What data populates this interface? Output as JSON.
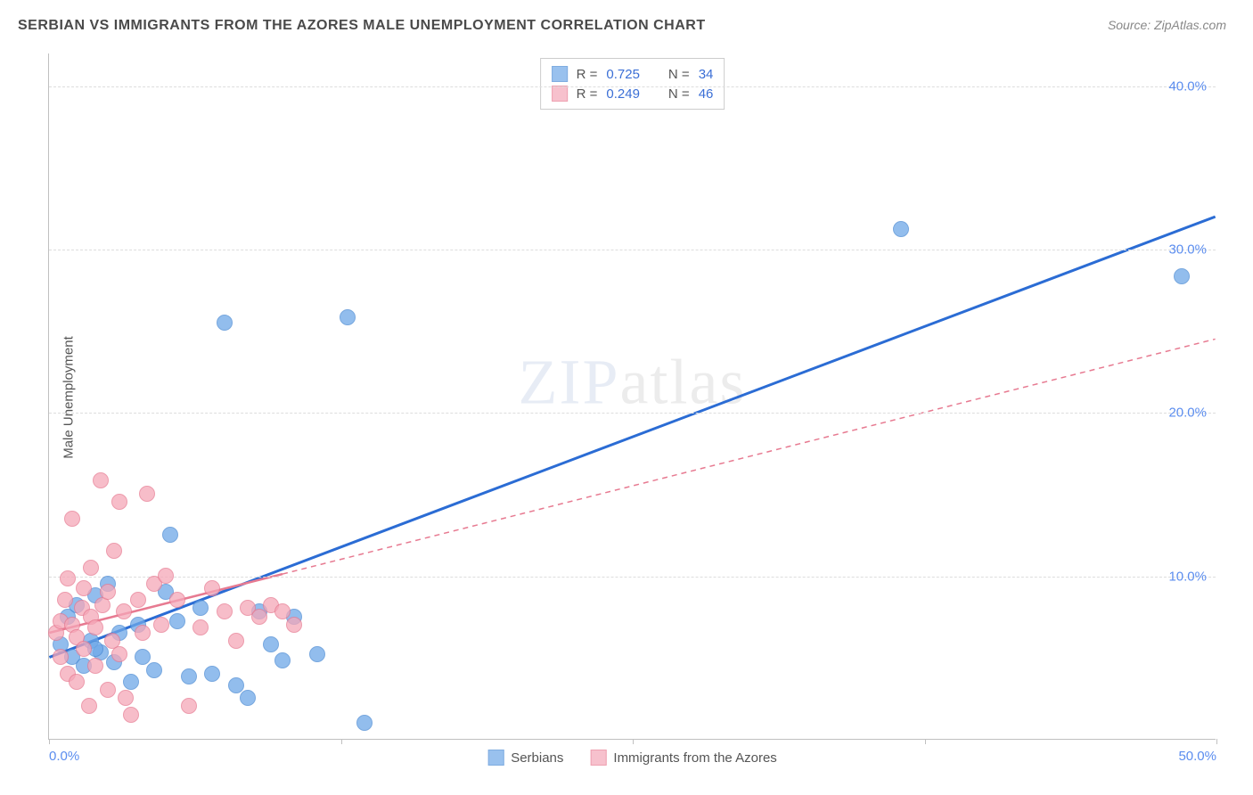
{
  "title": "SERBIAN VS IMMIGRANTS FROM THE AZORES MALE UNEMPLOYMENT CORRELATION CHART",
  "source": "Source: ZipAtlas.com",
  "y_axis_label": "Male Unemployment",
  "watermark": {
    "bold": "ZIP",
    "thin": "atlas"
  },
  "chart": {
    "type": "scatter",
    "xlim": [
      0,
      50
    ],
    "ylim": [
      0,
      42
    ],
    "x_ticks": [
      0,
      12.5,
      25,
      37.5,
      50
    ],
    "x_tick_labels": [
      "0.0%",
      "",
      "",
      "",
      "50.0%"
    ],
    "y_gridlines": [
      10,
      20,
      30,
      40
    ],
    "y_tick_labels": [
      "10.0%",
      "20.0%",
      "30.0%",
      "40.0%"
    ],
    "background_color": "#ffffff",
    "grid_color": "#dddddd",
    "axis_color": "#c0c0c0",
    "tick_label_color": "#5b8def",
    "point_radius": 9,
    "point_border_width": 1.5,
    "point_fill_opacity": 0.35
  },
  "series": [
    {
      "name": "Serbians",
      "color": "#6ea8e8",
      "border_color": "#4a8ad4",
      "R": "0.725",
      "N": "34",
      "trendline": {
        "x1": 0,
        "y1": 5.0,
        "x2": 50,
        "y2": 32.0,
        "stroke": "#2b6cd4",
        "width": 3,
        "dash": "none"
      },
      "points": [
        [
          0.5,
          5.8
        ],
        [
          0.8,
          7.5
        ],
        [
          1.0,
          5.0
        ],
        [
          1.2,
          8.2
        ],
        [
          1.5,
          4.5
        ],
        [
          1.8,
          6.0
        ],
        [
          2.0,
          8.8
        ],
        [
          2.2,
          5.3
        ],
        [
          2.5,
          9.5
        ],
        [
          2.8,
          4.7
        ],
        [
          3.0,
          6.5
        ],
        [
          3.5,
          3.5
        ],
        [
          3.8,
          7.0
        ],
        [
          4.0,
          5.0
        ],
        [
          4.5,
          4.2
        ],
        [
          5.0,
          9.0
        ],
        [
          5.2,
          12.5
        ],
        [
          5.5,
          7.2
        ],
        [
          6.0,
          3.8
        ],
        [
          6.5,
          8.0
        ],
        [
          7.0,
          4.0
        ],
        [
          7.5,
          25.5
        ],
        [
          8.0,
          3.3
        ],
        [
          8.5,
          2.5
        ],
        [
          9.0,
          7.8
        ],
        [
          9.5,
          5.8
        ],
        [
          10.0,
          4.8
        ],
        [
          10.5,
          7.5
        ],
        [
          11.5,
          5.2
        ],
        [
          12.8,
          25.8
        ],
        [
          13.5,
          1.0
        ],
        [
          36.5,
          31.2
        ],
        [
          48.5,
          28.3
        ],
        [
          2.0,
          5.5
        ]
      ]
    },
    {
      "name": "Immigrants from the Azores",
      "color": "#f5a7b8",
      "border_color": "#e77a91",
      "R": "0.249",
      "N": "46",
      "trendline": {
        "x1": 0,
        "y1": 6.5,
        "x2": 50,
        "y2": 24.5,
        "stroke": "#e77a91",
        "width": 1.5,
        "dash": "6 5",
        "solid_until_x": 10
      },
      "points": [
        [
          0.3,
          6.5
        ],
        [
          0.5,
          7.2
        ],
        [
          0.5,
          5.0
        ],
        [
          0.7,
          8.5
        ],
        [
          0.8,
          9.8
        ],
        [
          0.8,
          4.0
        ],
        [
          1.0,
          7.0
        ],
        [
          1.0,
          13.5
        ],
        [
          1.2,
          6.2
        ],
        [
          1.2,
          3.5
        ],
        [
          1.4,
          8.0
        ],
        [
          1.5,
          9.2
        ],
        [
          1.5,
          5.5
        ],
        [
          1.7,
          2.0
        ],
        [
          1.8,
          7.5
        ],
        [
          1.8,
          10.5
        ],
        [
          2.0,
          6.8
        ],
        [
          2.0,
          4.5
        ],
        [
          2.2,
          15.8
        ],
        [
          2.3,
          8.2
        ],
        [
          2.5,
          3.0
        ],
        [
          2.5,
          9.0
        ],
        [
          2.7,
          6.0
        ],
        [
          2.8,
          11.5
        ],
        [
          3.0,
          14.5
        ],
        [
          3.0,
          5.2
        ],
        [
          3.2,
          7.8
        ],
        [
          3.3,
          2.5
        ],
        [
          3.5,
          1.5
        ],
        [
          3.8,
          8.5
        ],
        [
          4.0,
          6.5
        ],
        [
          4.2,
          15.0
        ],
        [
          4.5,
          9.5
        ],
        [
          4.8,
          7.0
        ],
        [
          5.0,
          10.0
        ],
        [
          5.5,
          8.5
        ],
        [
          6.0,
          2.0
        ],
        [
          6.5,
          6.8
        ],
        [
          7.0,
          9.2
        ],
        [
          7.5,
          7.8
        ],
        [
          8.0,
          6.0
        ],
        [
          8.5,
          8.0
        ],
        [
          9.0,
          7.5
        ],
        [
          9.5,
          8.2
        ],
        [
          10.0,
          7.8
        ],
        [
          10.5,
          7.0
        ]
      ]
    }
  ],
  "stats_labels": {
    "R": "R =",
    "N": "N ="
  },
  "legend_labels": [
    "Serbians",
    "Immigrants from the Azores"
  ]
}
